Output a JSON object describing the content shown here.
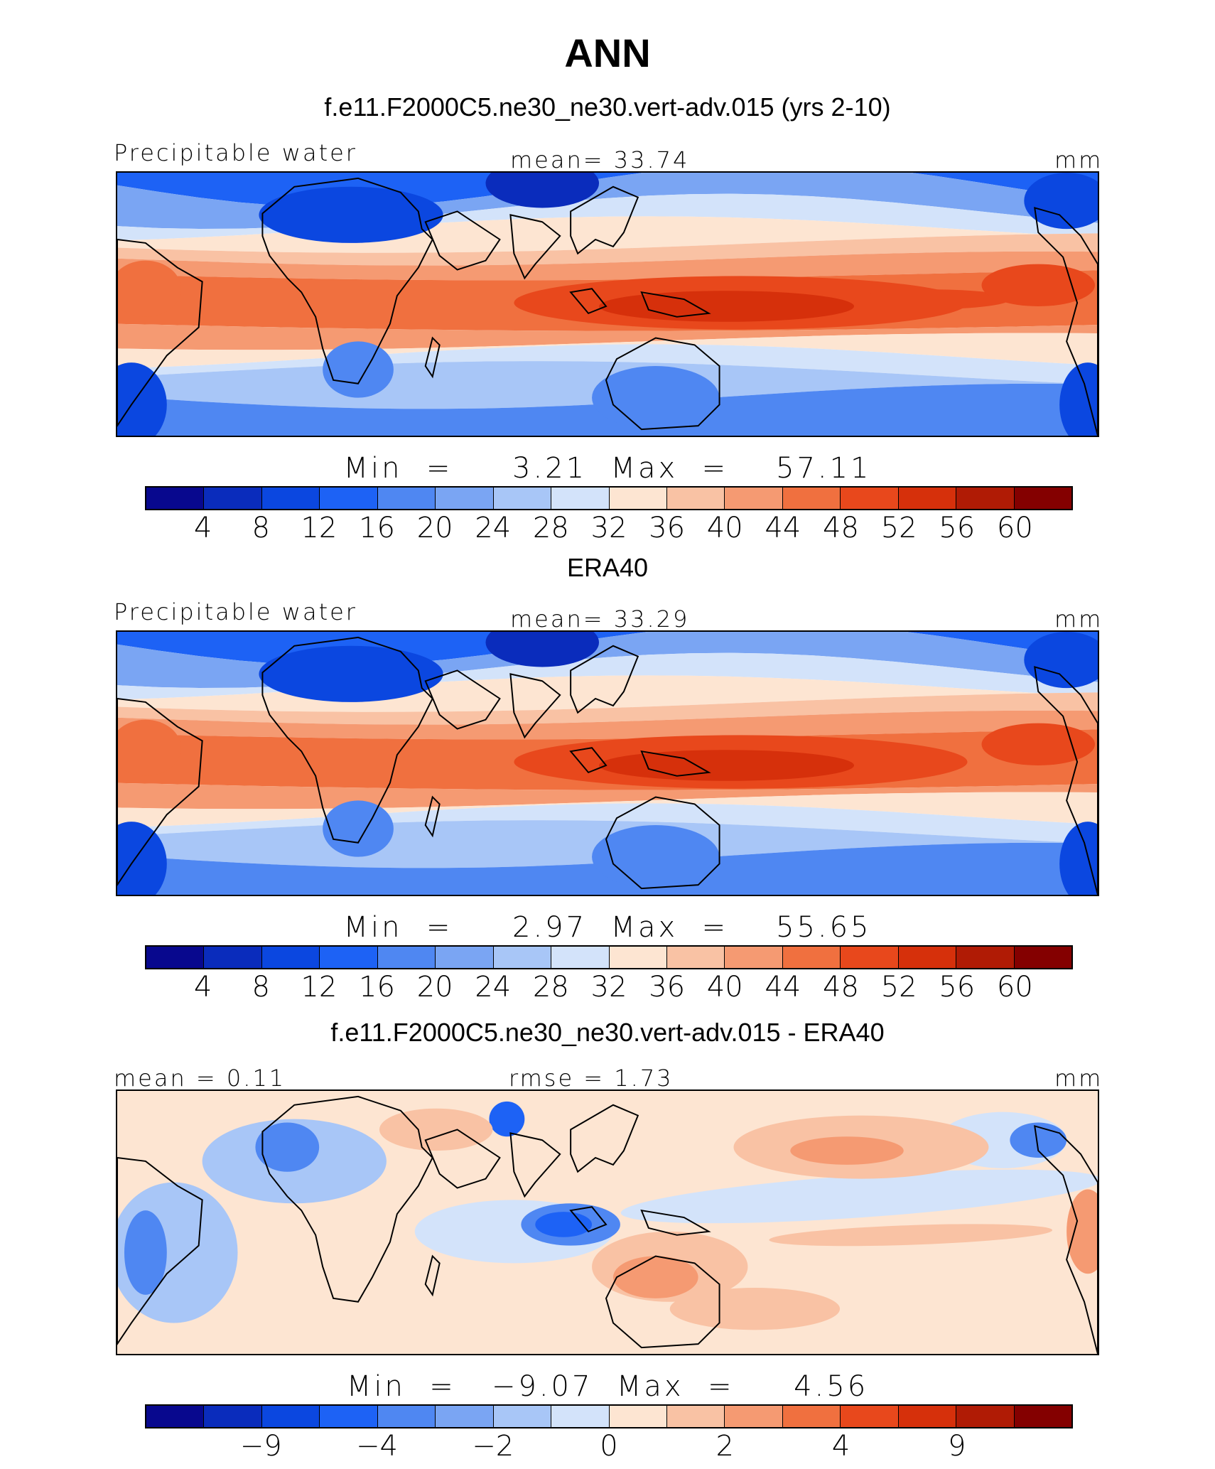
{
  "title": "ANN",
  "palette": [
    "#08088e",
    "#0a2cbc",
    "#0b47e0",
    "#1d62f5",
    "#4f87f2",
    "#7aa5f3",
    "#a8c6f7",
    "#d3e3fa",
    "#fde5d2",
    "#f9c2a4",
    "#f59a72",
    "#f0703f",
    "#e8481c",
    "#d6300b",
    "#b01b05",
    "#840000"
  ],
  "land_outline_color": "#000000",
  "panels": [
    {
      "title": "f.e11.F2000C5.ne30_ne30.vert-adv.015 (yrs 2-10)",
      "left_label": "Precipitable water",
      "center_label": "mean=   33.74",
      "right_label": "mm",
      "minmax": "Min  =     3.21  Max  =    57.11",
      "ticks": [
        "4",
        "8",
        "12",
        "16",
        "20",
        "24",
        "28",
        "32",
        "36",
        "40",
        "44",
        "48",
        "52",
        "56",
        "60"
      ],
      "field": "model",
      "map_data": {
        "lon_range": [
          -90,
          270
        ],
        "lat_range": [
          -40,
          40
        ],
        "units": "mm"
      }
    },
    {
      "title": "ERA40",
      "left_label": "Precipitable water",
      "center_label": "mean=   33.29",
      "right_label": "mm",
      "minmax": "Min  =     2.97  Max  =    55.65",
      "ticks": [
        "4",
        "8",
        "12",
        "16",
        "20",
        "24",
        "28",
        "32",
        "36",
        "40",
        "44",
        "48",
        "52",
        "56",
        "60"
      ],
      "field": "obs",
      "map_data": {
        "lon_range": [
          -90,
          270
        ],
        "lat_range": [
          -40,
          40
        ],
        "units": "mm"
      }
    },
    {
      "title": "f.e11.F2000C5.ne30_ne30.vert-adv.015 - ERA40",
      "left_label": "mean  =    0.11",
      "center_label": "rmse  =     1.73",
      "right_label": "mm",
      "minmax": "Min  =   −9.07  Max  =     4.56",
      "ticks": [
        "−9",
        "",
        "−4",
        "",
        "−2",
        "",
        "0",
        "",
        "2",
        "",
        "4",
        "",
        "9",
        ""
      ],
      "tick_positions": [
        2,
        4,
        6,
        8,
        10,
        12,
        14
      ],
      "field": "diff",
      "map_data": {
        "lon_range": [
          -90,
          270
        ],
        "lat_range": [
          -40,
          40
        ],
        "units": "mm"
      }
    }
  ]
}
